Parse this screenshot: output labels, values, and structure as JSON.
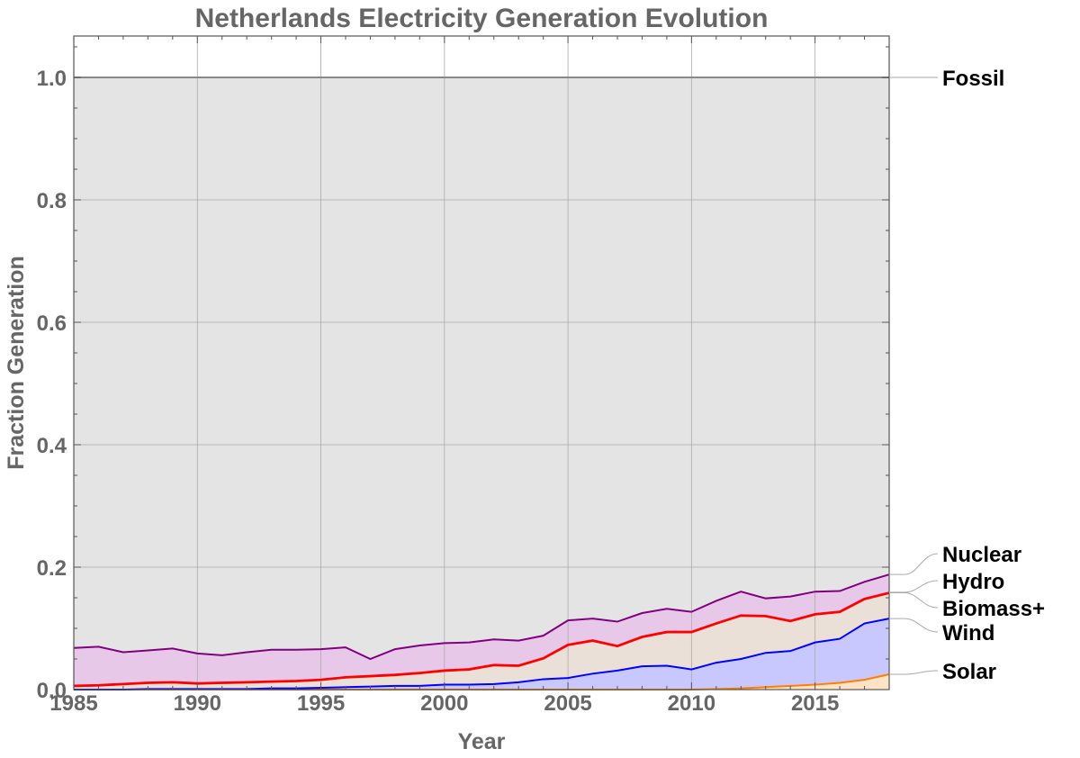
{
  "chart_data": {
    "type": "area",
    "stacked": true,
    "title": "Netherlands Electricity Generation Evolution",
    "xlabel": "Year",
    "ylabel": "Fraction Generation",
    "xlim": [
      1985,
      2018
    ],
    "ylim": [
      0,
      1.06
    ],
    "grid": true,
    "x_ticks": [
      "1985",
      "1990",
      "1995",
      "2000",
      "2005",
      "2010",
      "2015"
    ],
    "y_ticks": [
      "0.0",
      "0.2",
      "0.4",
      "0.6",
      "0.8",
      "1.0"
    ],
    "x": [
      1985,
      1986,
      1987,
      1988,
      1989,
      1990,
      1991,
      1992,
      1993,
      1994,
      1995,
      1996,
      1997,
      1998,
      1999,
      2000,
      2001,
      2002,
      2003,
      2004,
      2005,
      2006,
      2007,
      2008,
      2009,
      2010,
      2011,
      2012,
      2013,
      2014,
      2015,
      2016,
      2017,
      2018
    ],
    "value_note": "cumulative stacked top of each layer",
    "series": [
      {
        "name": "Solar",
        "color": "#ff8000",
        "fill": "#ffe3c4",
        "values": [
          0,
          0,
          0,
          0,
          0,
          0,
          0,
          0,
          0,
          0,
          0,
          0,
          0,
          0,
          0,
          0,
          0,
          0,
          0,
          0,
          0,
          0,
          0,
          0,
          0,
          0,
          0.001,
          0.002,
          0.004,
          0.006,
          0.008,
          0.011,
          0.016,
          0.025
        ]
      },
      {
        "name": "Wind",
        "color": "#0000ff",
        "fill": "#c8c8ff",
        "values": [
          0,
          0,
          0,
          0.001,
          0.001,
          0.001,
          0.001,
          0.001,
          0.002,
          0.002,
          0.003,
          0.004,
          0.005,
          0.006,
          0.006,
          0.008,
          0.008,
          0.009,
          0.012,
          0.017,
          0.019,
          0.026,
          0.031,
          0.038,
          0.039,
          0.033,
          0.044,
          0.05,
          0.06,
          0.063,
          0.077,
          0.083,
          0.108,
          0.116
        ]
      },
      {
        "name": "Biomass+",
        "color": "#ff0000",
        "fill": "#ebe0d8",
        "values": [
          0.006,
          0.007,
          0.009,
          0.011,
          0.012,
          0.01,
          0.011,
          0.012,
          0.013,
          0.014,
          0.016,
          0.02,
          0.022,
          0.024,
          0.027,
          0.031,
          0.033,
          0.04,
          0.039,
          0.051,
          0.073,
          0.08,
          0.071,
          0.086,
          0.094,
          0.094,
          0.108,
          0.121,
          0.12,
          0.112,
          0.123,
          0.127,
          0.148,
          0.158
        ]
      },
      {
        "name": "Hydro",
        "color": "#a0522d",
        "fill": "#ebe0d8",
        "values": [
          0.007,
          0.008,
          0.01,
          0.012,
          0.013,
          0.011,
          0.012,
          0.013,
          0.014,
          0.015,
          0.017,
          0.021,
          0.023,
          0.025,
          0.028,
          0.032,
          0.034,
          0.041,
          0.04,
          0.052,
          0.074,
          0.081,
          0.072,
          0.087,
          0.095,
          0.095,
          0.109,
          0.122,
          0.121,
          0.113,
          0.124,
          0.128,
          0.149,
          0.159
        ]
      },
      {
        "name": "Nuclear",
        "color": "#800080",
        "fill": "#e8c8e8",
        "values": [
          0.068,
          0.07,
          0.061,
          0.064,
          0.067,
          0.059,
          0.056,
          0.061,
          0.065,
          0.065,
          0.066,
          0.069,
          0.05,
          0.066,
          0.072,
          0.076,
          0.077,
          0.082,
          0.08,
          0.088,
          0.113,
          0.116,
          0.111,
          0.125,
          0.132,
          0.127,
          0.145,
          0.16,
          0.149,
          0.152,
          0.16,
          0.161,
          0.176,
          0.188
        ]
      },
      {
        "name": "Fossil",
        "color": "#888888",
        "fill": "#e4e4e4",
        "values": [
          1,
          1,
          1,
          1,
          1,
          1,
          1,
          1,
          1,
          1,
          1,
          1,
          1,
          1,
          1,
          1,
          1,
          1,
          1,
          1,
          1,
          1,
          1,
          1,
          1,
          1,
          1,
          1,
          1,
          1,
          1,
          1,
          1,
          1
        ]
      }
    ]
  }
}
